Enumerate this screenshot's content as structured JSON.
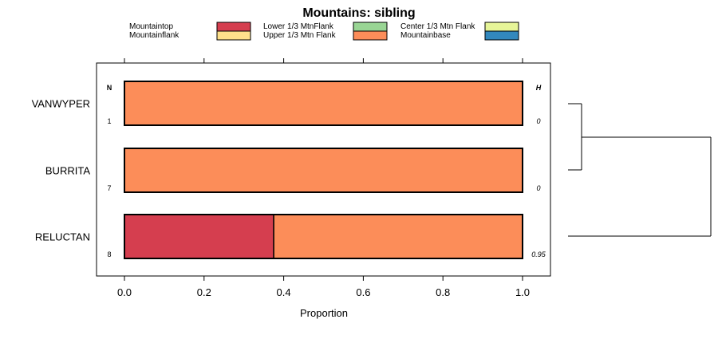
{
  "chart_data": {
    "type": "bar",
    "orientation": "horizontal",
    "stacked": true,
    "title": "Mountains: sibling",
    "xlabel": "Proportion",
    "xlim": [
      0,
      1
    ],
    "xticks": [
      "0.0",
      "0.2",
      "0.4",
      "0.6",
      "0.8",
      "1.0"
    ],
    "xtick_values": [
      0,
      0.2,
      0.4,
      0.6,
      0.8,
      1.0
    ],
    "n_header": "N",
    "h_header": "H",
    "categories": [
      "VANWYPER",
      "BURRITA",
      "RELUCTAN"
    ],
    "n_values": [
      "1",
      "7",
      "8"
    ],
    "h_values": [
      "0",
      "0",
      "0.95"
    ],
    "series": [
      {
        "name": "Mountaintop",
        "color": "#d53e4f",
        "values": [
          0,
          0,
          0.375
        ]
      },
      {
        "name": "Mountainflank",
        "color": "#fee08b",
        "values": [
          0,
          0,
          0
        ]
      },
      {
        "name": "Lower 1/3 MtnFlank",
        "color": "#99d594",
        "values": [
          0,
          0,
          0
        ]
      },
      {
        "name": "Upper 1/3 Mtn Flank",
        "color": "#fc8d59",
        "values": [
          1,
          1,
          0.625
        ]
      },
      {
        "name": "Center 1/3 Mtn Flank",
        "color": "#e6f598",
        "values": [
          0,
          0,
          0
        ]
      },
      {
        "name": "Mountainbase",
        "color": "#3288bd",
        "values": [
          0,
          0,
          0
        ]
      }
    ],
    "legend_position": "top",
    "dendrogram": "right"
  }
}
